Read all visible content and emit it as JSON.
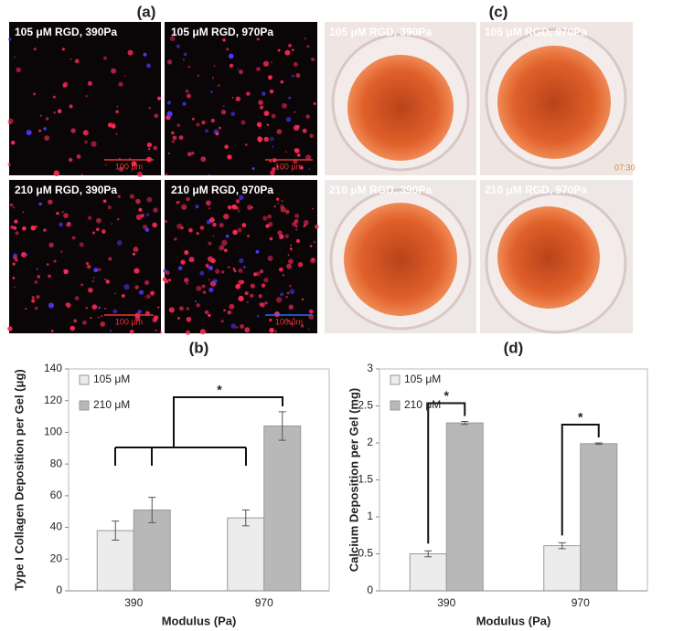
{
  "panels": {
    "a": {
      "label": "(a)",
      "images": [
        "105 μM RGD, 390Pa",
        "105 μM RGD, 970Pa",
        "210 μM RGD, 390Pa",
        "210 μM RGD, 970Pa"
      ],
      "scale_bar": "100 μm"
    },
    "c": {
      "label": "(c)",
      "images": [
        "105 μM RGD, 390Pa",
        "105 μM RGD, 970Pa",
        "210 μM RGD, 390Pa",
        "210 μM RGD, 970Pa"
      ],
      "timestamp": "07:30"
    }
  },
  "chart_data": [
    {
      "type": "bar",
      "title": "(b)",
      "x_label": "Modulus (Pa)",
      "y_label": "Type I Collagen Deposition per Gel (μg)",
      "categories": [
        "390",
        "970"
      ],
      "series": [
        {
          "name": "105 μM",
          "color": "#ececec",
          "values": [
            38,
            46
          ],
          "errors": [
            6,
            5
          ]
        },
        {
          "name": "210 μM",
          "color": "#b8b8b8",
          "values": [
            51,
            104
          ],
          "errors": [
            8,
            9
          ]
        }
      ],
      "ylim": [
        0,
        140
      ],
      "yticks": [
        0,
        20,
        40,
        60,
        80,
        100,
        120,
        140
      ],
      "legend": "upper left",
      "annotations": [
        "*"
      ]
    },
    {
      "type": "bar",
      "title": "(d)",
      "x_label": "Modulus (Pa)",
      "y_label": "Calcium Deposition per Gel (mg)",
      "categories": [
        "390",
        "970"
      ],
      "series": [
        {
          "name": "105 μM",
          "color": "#ececec",
          "values": [
            0.5,
            0.61
          ],
          "errors": [
            0.04,
            0.04
          ]
        },
        {
          "name": "210 μM",
          "color": "#b8b8b8",
          "values": [
            2.27,
            1.99
          ],
          "errors": [
            0.02,
            0.01
          ]
        }
      ],
      "ylim": [
        0,
        3
      ],
      "yticks": [
        0,
        0.5,
        1,
        1.5,
        2,
        2.5,
        3
      ],
      "legend": "upper left",
      "annotations": [
        "*",
        "*"
      ]
    }
  ]
}
